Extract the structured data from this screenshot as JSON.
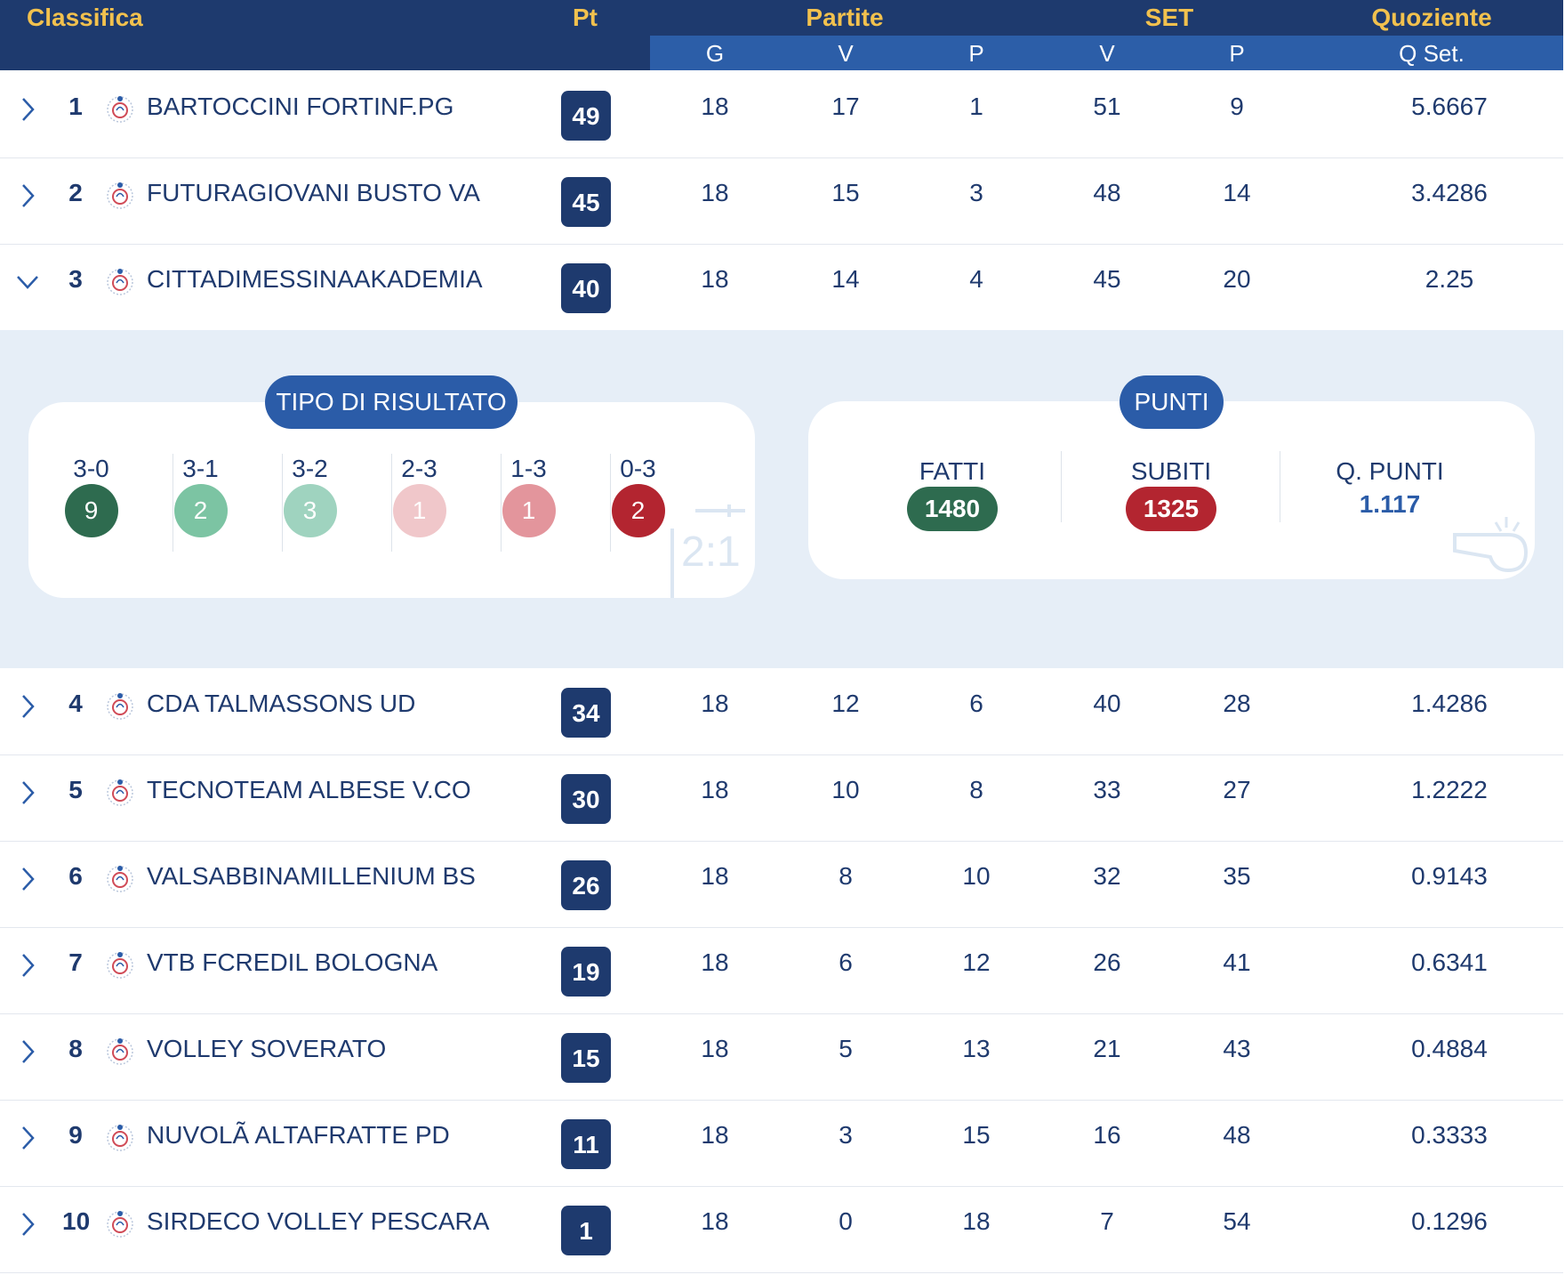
{
  "header": {
    "classifica": "Classifica",
    "pt": "Pt",
    "partite": "Partite",
    "set": "SET",
    "quoziente": "Quoziente",
    "sub": {
      "g": "G",
      "pv": "V",
      "pp": "P",
      "sv": "V",
      "sp": "P",
      "qset": "Q Set."
    }
  },
  "rows": [
    {
      "rank": "1",
      "team": "BARTOCCINI FORTINF.PG",
      "pt": "49",
      "g": "18",
      "pv": "17",
      "pp": "1",
      "sv": "51",
      "sp": "9",
      "qset": "5.6667"
    },
    {
      "rank": "2",
      "team": "FUTURAGIOVANI BUSTO VA",
      "pt": "45",
      "g": "18",
      "pv": "15",
      "pp": "3",
      "sv": "48",
      "sp": "14",
      "qset": "3.4286"
    },
    {
      "rank": "3",
      "team": "CITTADIMESSINAAKADEMIA",
      "pt": "40",
      "g": "18",
      "pv": "14",
      "pp": "4",
      "sv": "45",
      "sp": "20",
      "qset": "2.25"
    },
    {
      "rank": "4",
      "team": "CDA TALMASSONS UD",
      "pt": "34",
      "g": "18",
      "pv": "12",
      "pp": "6",
      "sv": "40",
      "sp": "28",
      "qset": "1.4286"
    },
    {
      "rank": "5",
      "team": "TECNOTEAM ALBESE V.CO",
      "pt": "30",
      "g": "18",
      "pv": "10",
      "pp": "8",
      "sv": "33",
      "sp": "27",
      "qset": "1.2222"
    },
    {
      "rank": "6",
      "team": "VALSABBINAMILLENIUM BS",
      "pt": "26",
      "g": "18",
      "pv": "8",
      "pp": "10",
      "sv": "32",
      "sp": "35",
      "qset": "0.9143"
    },
    {
      "rank": "7",
      "team": "VTB FCREDIL BOLOGNA",
      "pt": "19",
      "g": "18",
      "pv": "6",
      "pp": "12",
      "sv": "26",
      "sp": "41",
      "qset": "0.6341"
    },
    {
      "rank": "8",
      "team": "VOLLEY SOVERATO",
      "pt": "15",
      "g": "18",
      "pv": "5",
      "pp": "13",
      "sv": "21",
      "sp": "43",
      "qset": "0.4884"
    },
    {
      "rank": "9",
      "team": "NUVOLÃ ALTAFRATTE PD",
      "pt": "11",
      "g": "18",
      "pv": "3",
      "pp": "15",
      "sv": "16",
      "sp": "48",
      "qset": "0.3333"
    },
    {
      "rank": "10",
      "team": "SIRDECO VOLLEY PESCARA",
      "pt": "1",
      "g": "18",
      "pv": "0",
      "pp": "18",
      "sv": "7",
      "sp": "54",
      "qset": "0.1296"
    }
  ],
  "expanded": {
    "tipo_title": "TIPO DI RISULTATO",
    "results": [
      {
        "label": "3-0",
        "count": "9",
        "color": "#2e6b4f"
      },
      {
        "label": "3-1",
        "count": "2",
        "color": "#7cc4a3"
      },
      {
        "label": "3-2",
        "count": "3",
        "color": "#9fd3bf"
      },
      {
        "label": "2-3",
        "count": "1",
        "color": "#f0c7ca"
      },
      {
        "label": "1-3",
        "count": "1",
        "color": "#e3959c"
      },
      {
        "label": "0-3",
        "count": "2",
        "color": "#b32530"
      }
    ],
    "watermark_score": "2:1",
    "punti_title": "PUNTI",
    "fatti_label": "FATTI",
    "fatti_value": "1480",
    "subiti_label": "SUBITI",
    "subiti_value": "1325",
    "qpunti_label": "Q. PUNTI",
    "qpunti_value": "1.117"
  },
  "colors": {
    "header_bg": "#1e3a6e",
    "subheader_bg": "#2c5ea8",
    "header_text": "#f2c14e",
    "fatti_bg": "#2e6b4f",
    "subiti_bg": "#b32530"
  },
  "icons": {
    "collapsed": "chevron-right-icon",
    "expanded": "chevron-down-icon",
    "team_logo": "team-logo-icon"
  }
}
